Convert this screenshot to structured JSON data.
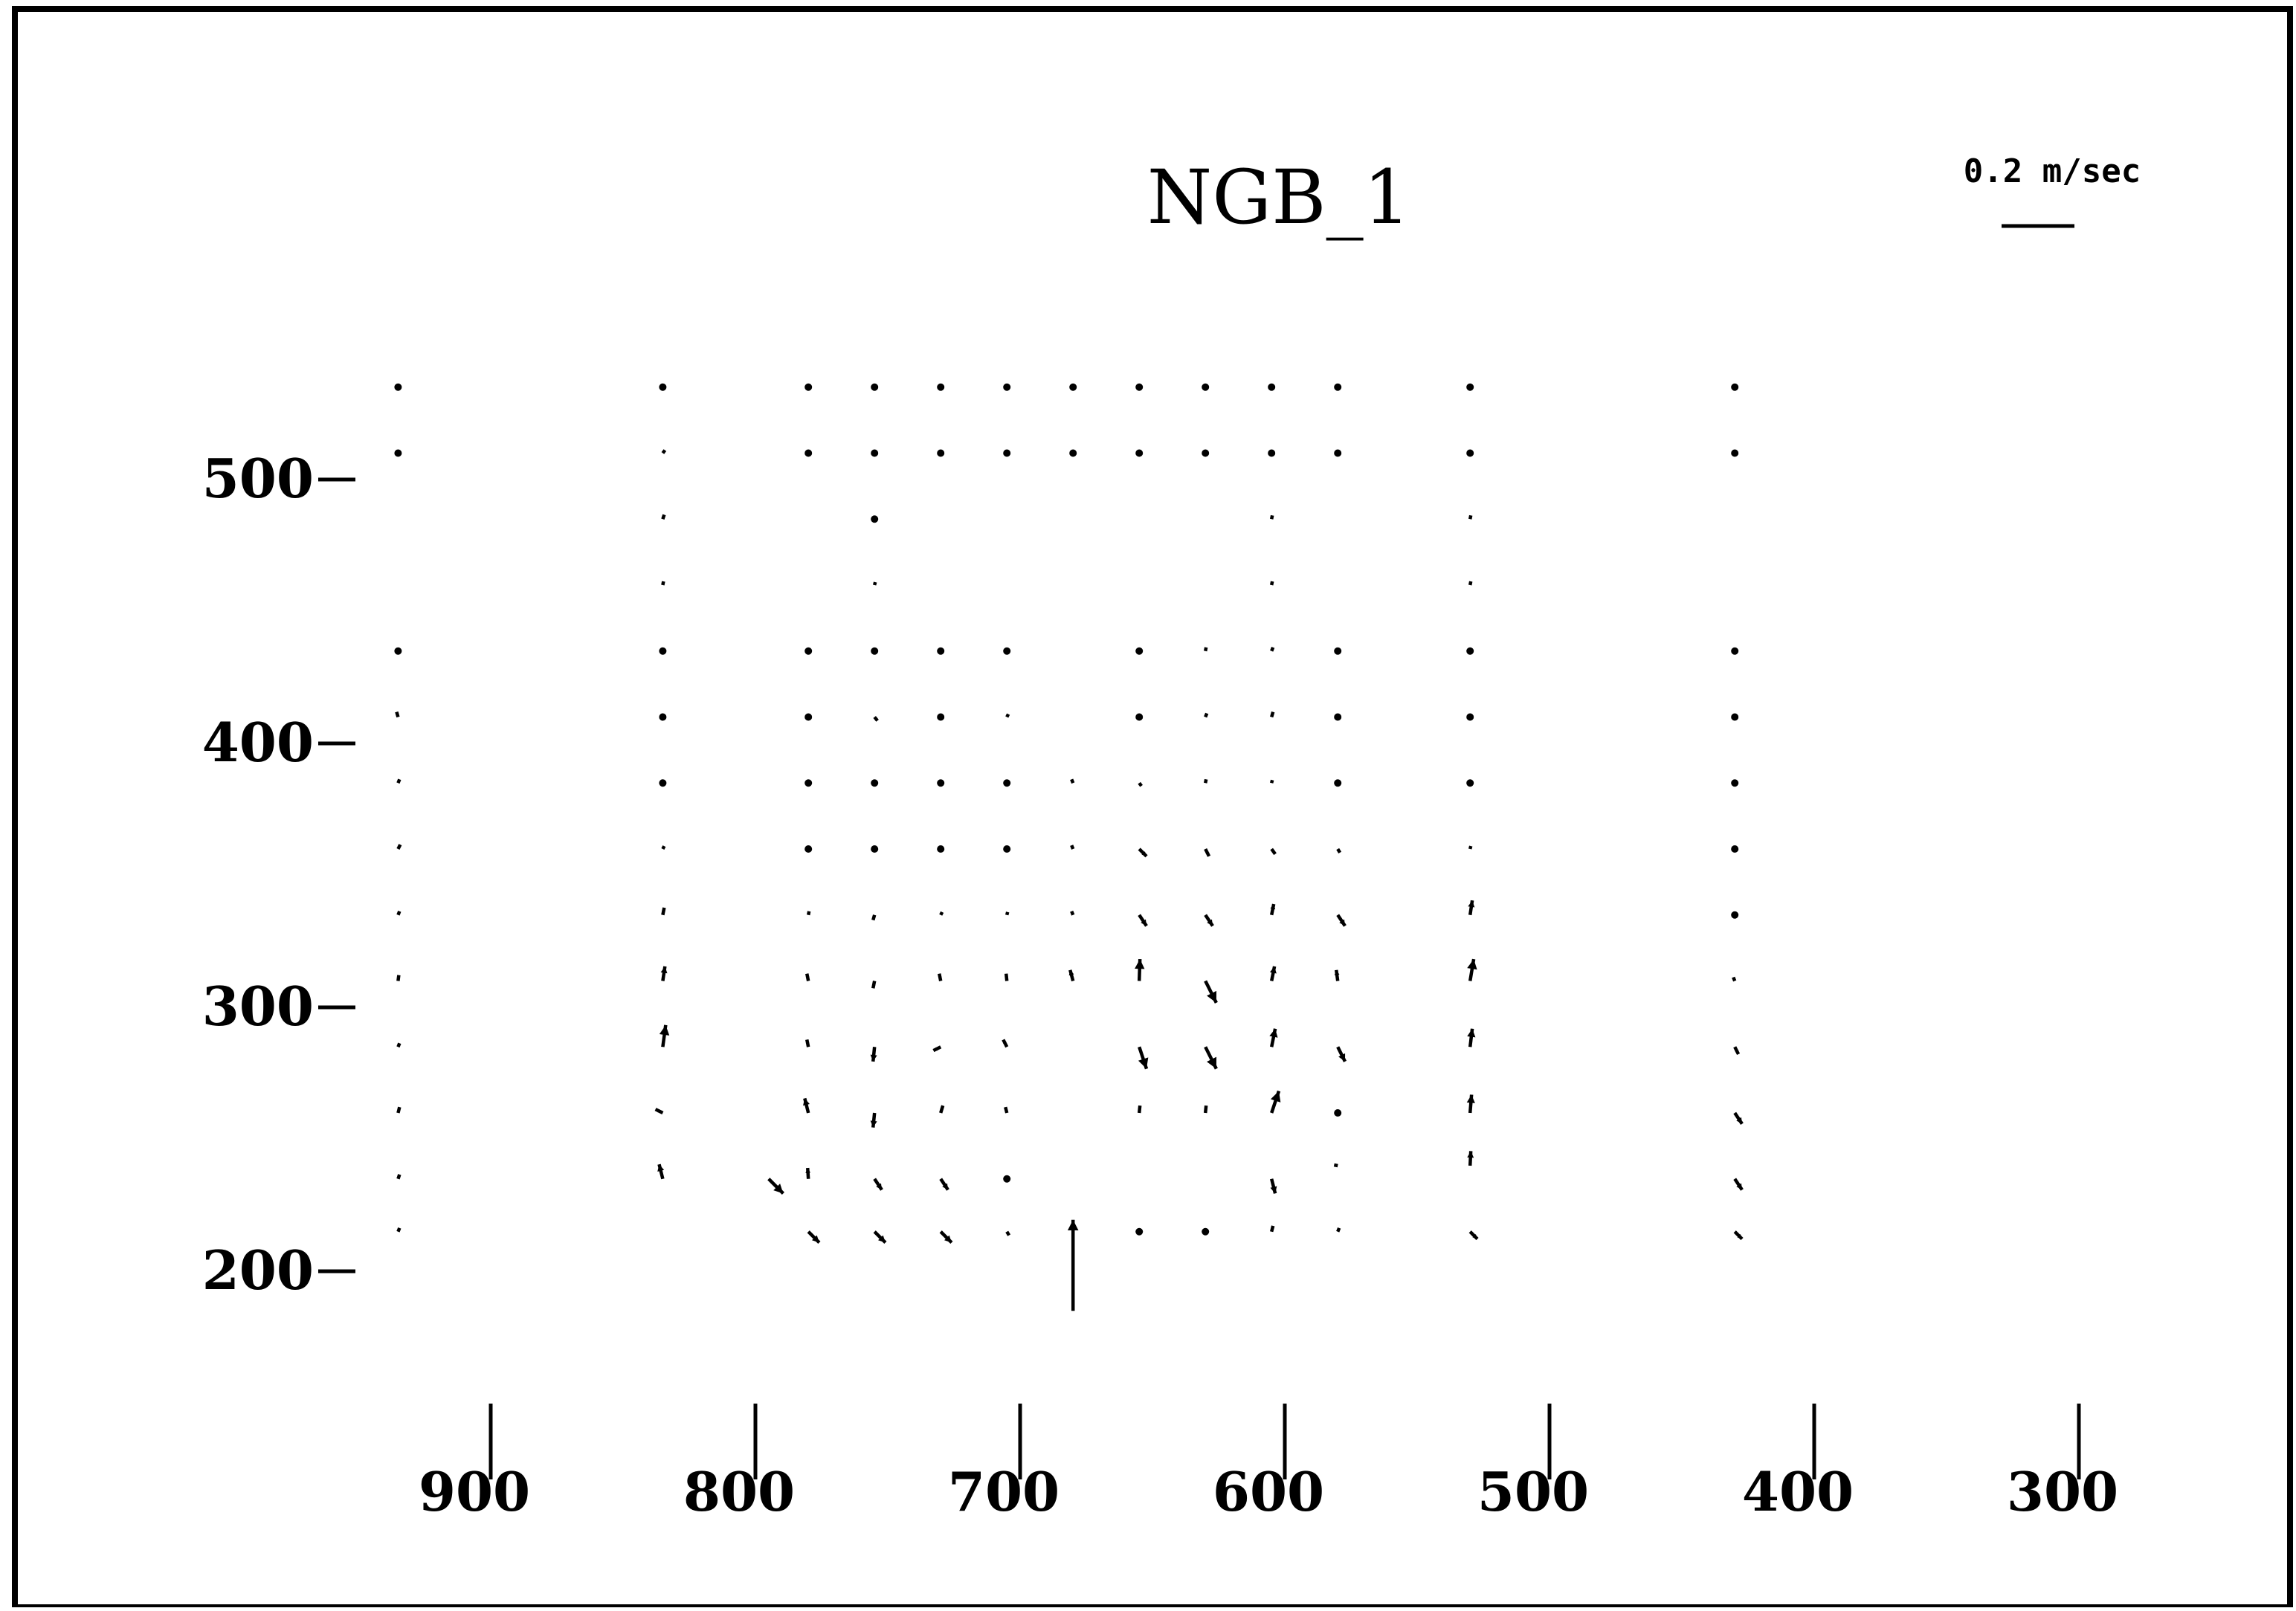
{
  "chart_data": {
    "type": "scatter",
    "title": "NGB_1",
    "xlabel": "",
    "ylabel": "",
    "x_ticks": [
      "900",
      "800",
      "700",
      "600",
      "500",
      "400",
      "300"
    ],
    "y_ticks": [
      "500",
      "400",
      "300",
      "200"
    ],
    "xlim": [
      935,
      285
    ],
    "ylim": [
      180,
      545
    ],
    "grid": false,
    "scale_label": "0.2 m/sec",
    "scale_value_mps": 0.2,
    "vector_units": "m/sec (vector components u, v)",
    "vectors": [
      {
        "x": 935,
        "y": 535,
        "u": 0.002,
        "v": -0.004
      },
      {
        "x": 935,
        "y": 510,
        "u": 0.004,
        "v": -0.004
      },
      {
        "x": 935,
        "y": 435,
        "u": 0.002,
        "v": 0.004
      },
      {
        "x": 935,
        "y": 410,
        "u": -0.004,
        "v": 0.014
      },
      {
        "x": 935,
        "y": 385,
        "u": 0.004,
        "v": 0.01
      },
      {
        "x": 935,
        "y": 360,
        "u": 0.006,
        "v": 0.012
      },
      {
        "x": 935,
        "y": 335,
        "u": 0.004,
        "v": 0.01
      },
      {
        "x": 935,
        "y": 310,
        "u": 0.002,
        "v": 0.016
      },
      {
        "x": 935,
        "y": 285,
        "u": 0.004,
        "v": 0.01
      },
      {
        "x": 935,
        "y": 260,
        "u": 0.004,
        "v": 0.016
      },
      {
        "x": 935,
        "y": 235,
        "u": 0.004,
        "v": 0.012
      },
      {
        "x": 935,
        "y": 215,
        "u": 0.004,
        "v": 0.01
      },
      {
        "x": 835,
        "y": 535,
        "u": 0.002,
        "v": -0.004
      },
      {
        "x": 835,
        "y": 510,
        "u": 0.006,
        "v": 0.008
      },
      {
        "x": 835,
        "y": 485,
        "u": 0.004,
        "v": 0.012
      },
      {
        "x": 835,
        "y": 460,
        "u": 0.002,
        "v": 0.01
      },
      {
        "x": 835,
        "y": 435,
        "u": 0.002,
        "v": 0.006
      },
      {
        "x": 835,
        "y": 410,
        "u": 0.002,
        "v": 0.004
      },
      {
        "x": 835,
        "y": 385,
        "u": 0.002,
        "v": 0.004
      },
      {
        "x": 835,
        "y": 360,
        "u": 0.004,
        "v": 0.008
      },
      {
        "x": 835,
        "y": 335,
        "u": 0.004,
        "v": 0.02
      },
      {
        "x": 835,
        "y": 310,
        "u": 0.006,
        "v": 0.04
      },
      {
        "x": 835,
        "y": 285,
        "u": 0.008,
        "v": 0.06
      },
      {
        "x": 835,
        "y": 260,
        "u": -0.02,
        "v": 0.01
      },
      {
        "x": 835,
        "y": 235,
        "u": -0.01,
        "v": 0.04
      },
      {
        "x": 795,
        "y": 235,
        "u": 0.04,
        "v": -0.04
      },
      {
        "x": 780,
        "y": 535,
        "u": 0.004,
        "v": -0.004
      },
      {
        "x": 780,
        "y": 510,
        "u": 0.004,
        "v": -0.004
      },
      {
        "x": 780,
        "y": 435,
        "u": 0.002,
        "v": 0.004
      },
      {
        "x": 780,
        "y": 410,
        "u": 0.002,
        "v": 0.004
      },
      {
        "x": 780,
        "y": 385,
        "u": 0.002,
        "v": 0.004
      },
      {
        "x": 780,
        "y": 360,
        "u": 0.002,
        "v": 0.004
      },
      {
        "x": 780,
        "y": 335,
        "u": 0.002,
        "v": 0.01
      },
      {
        "x": 780,
        "y": 310,
        "u": -0.004,
        "v": 0.02
      },
      {
        "x": 780,
        "y": 285,
        "u": -0.004,
        "v": 0.02
      },
      {
        "x": 780,
        "y": 260,
        "u": -0.01,
        "v": 0.04
      },
      {
        "x": 780,
        "y": 235,
        "u": -0.002,
        "v": 0.03
      },
      {
        "x": 780,
        "y": 215,
        "u": 0.03,
        "v": -0.03
      },
      {
        "x": 755,
        "y": 535,
        "u": 0.002,
        "v": -0.004
      },
      {
        "x": 755,
        "y": 510,
        "u": 0.002,
        "v": -0.004
      },
      {
        "x": 755,
        "y": 485,
        "u": 0.002,
        "v": 0.006
      },
      {
        "x": 755,
        "y": 460,
        "u": 0.002,
        "v": 0.008
      },
      {
        "x": 755,
        "y": 435,
        "u": 0.002,
        "v": 0.006
      },
      {
        "x": 755,
        "y": 410,
        "u": 0.008,
        "v": -0.01
      },
      {
        "x": 755,
        "y": 385,
        "u": 0.002,
        "v": -0.004
      },
      {
        "x": 755,
        "y": 360,
        "u": 0.002,
        "v": -0.004
      },
      {
        "x": 755,
        "y": 335,
        "u": -0.004,
        "v": -0.014
      },
      {
        "x": 755,
        "y": 310,
        "u": -0.004,
        "v": -0.02
      },
      {
        "x": 755,
        "y": 285,
        "u": -0.004,
        "v": -0.04
      },
      {
        "x": 755,
        "y": 260,
        "u": -0.004,
        "v": -0.04
      },
      {
        "x": 755,
        "y": 235,
        "u": 0.02,
        "v": -0.03
      },
      {
        "x": 755,
        "y": 215,
        "u": 0.03,
        "v": -0.03
      },
      {
        "x": 730,
        "y": 535,
        "u": 0.002,
        "v": -0.004
      },
      {
        "x": 730,
        "y": 510,
        "u": 0.002,
        "v": -0.004
      },
      {
        "x": 730,
        "y": 435,
        "u": 0.004,
        "v": 0.006
      },
      {
        "x": 730,
        "y": 410,
        "u": 0.002,
        "v": 0.004
      },
      {
        "x": 730,
        "y": 385,
        "u": 0.002,
        "v": 0.004
      },
      {
        "x": 730,
        "y": 360,
        "u": 0.002,
        "v": 0.006
      },
      {
        "x": 730,
        "y": 335,
        "u": 0.004,
        "v": 0.008
      },
      {
        "x": 730,
        "y": 310,
        "u": -0.004,
        "v": 0.02
      },
      {
        "x": 730,
        "y": 285,
        "u": -0.02,
        "v": -0.01
      },
      {
        "x": 730,
        "y": 260,
        "u": 0.006,
        "v": 0.02
      },
      {
        "x": 730,
        "y": 235,
        "u": 0.02,
        "v": -0.03
      },
      {
        "x": 730,
        "y": 215,
        "u": 0.03,
        "v": -0.03
      },
      {
        "x": 705,
        "y": 535,
        "u": 0.004,
        "v": 0.006
      },
      {
        "x": 705,
        "y": 510,
        "u": 0.002,
        "v": -0.004
      },
      {
        "x": 705,
        "y": 435,
        "u": 0.002,
        "v": 0.006
      },
      {
        "x": 705,
        "y": 410,
        "u": 0.004,
        "v": 0.008
      },
      {
        "x": 705,
        "y": 385,
        "u": 0.002,
        "v": 0.006
      },
      {
        "x": 705,
        "y": 360,
        "u": 0.004,
        "v": 0.006
      },
      {
        "x": 705,
        "y": 335,
        "u": 0.002,
        "v": 0.008
      },
      {
        "x": 705,
        "y": 310,
        "u": -0.002,
        "v": 0.02
      },
      {
        "x": 705,
        "y": 285,
        "u": -0.01,
        "v": 0.02
      },
      {
        "x": 705,
        "y": 260,
        "u": -0.004,
        "v": 0.016
      },
      {
        "x": 705,
        "y": 235,
        "u": 0.002,
        "v": 0.006
      },
      {
        "x": 705,
        "y": 215,
        "u": 0.006,
        "v": -0.01
      },
      {
        "x": 680,
        "y": 535,
        "u": 0.002,
        "v": 0.004
      },
      {
        "x": 680,
        "y": 510,
        "u": 0.004,
        "v": 0.004
      },
      {
        "x": 680,
        "y": 385,
        "u": -0.004,
        "v": 0.01
      },
      {
        "x": 680,
        "y": 360,
        "u": -0.004,
        "v": 0.01
      },
      {
        "x": 680,
        "y": 335,
        "u": -0.004,
        "v": 0.01
      },
      {
        "x": 680,
        "y": 310,
        "u": -0.008,
        "v": 0.03
      },
      {
        "x": 680,
        "y": 185,
        "u": 0.0,
        "v": 0.25
      },
      {
        "x": 655,
        "y": 535,
        "u": 0.002,
        "v": 0.004
      },
      {
        "x": 655,
        "y": 510,
        "u": 0.002,
        "v": 0.004
      },
      {
        "x": 655,
        "y": 435,
        "u": 0.002,
        "v": 0.006
      },
      {
        "x": 655,
        "y": 410,
        "u": 0.002,
        "v": 0.006
      },
      {
        "x": 655,
        "y": 385,
        "u": 0.006,
        "v": -0.008
      },
      {
        "x": 655,
        "y": 360,
        "u": 0.02,
        "v": -0.02
      },
      {
        "x": 655,
        "y": 335,
        "u": 0.02,
        "v": -0.03
      },
      {
        "x": 655,
        "y": 310,
        "u": 0.002,
        "v": 0.06
      },
      {
        "x": 655,
        "y": 285,
        "u": 0.02,
        "v": -0.06
      },
      {
        "x": 655,
        "y": 260,
        "u": 0.002,
        "v": 0.02
      },
      {
        "x": 655,
        "y": 215,
        "u": 0.002,
        "v": 0.004
      },
      {
        "x": 630,
        "y": 535,
        "u": 0.002,
        "v": 0.004
      },
      {
        "x": 630,
        "y": 510,
        "u": 0.002,
        "v": 0.004
      },
      {
        "x": 630,
        "y": 435,
        "u": 0.002,
        "v": 0.01
      },
      {
        "x": 630,
        "y": 410,
        "u": 0.004,
        "v": 0.01
      },
      {
        "x": 630,
        "y": 385,
        "u": 0.002,
        "v": 0.01
      },
      {
        "x": 630,
        "y": 360,
        "u": 0.01,
        "v": -0.02
      },
      {
        "x": 630,
        "y": 335,
        "u": 0.02,
        "v": -0.03
      },
      {
        "x": 630,
        "y": 310,
        "u": 0.03,
        "v": -0.06
      },
      {
        "x": 630,
        "y": 285,
        "u": 0.03,
        "v": -0.06
      },
      {
        "x": 630,
        "y": 260,
        "u": 0.002,
        "v": 0.02
      },
      {
        "x": 630,
        "y": 215,
        "u": 0.004,
        "v": 0.006
      },
      {
        "x": 605,
        "y": 535,
        "u": 0.002,
        "v": 0.004
      },
      {
        "x": 605,
        "y": 510,
        "u": 0.002,
        "v": 0.004
      },
      {
        "x": 605,
        "y": 485,
        "u": 0.002,
        "v": 0.01
      },
      {
        "x": 605,
        "y": 460,
        "u": 0.002,
        "v": 0.01
      },
      {
        "x": 605,
        "y": 435,
        "u": 0.004,
        "v": 0.01
      },
      {
        "x": 605,
        "y": 410,
        "u": 0.004,
        "v": 0.014
      },
      {
        "x": 605,
        "y": 385,
        "u": 0.002,
        "v": 0.008
      },
      {
        "x": 605,
        "y": 360,
        "u": 0.01,
        "v": -0.014
      },
      {
        "x": 605,
        "y": 335,
        "u": 0.006,
        "v": 0.03
      },
      {
        "x": 605,
        "y": 310,
        "u": 0.008,
        "v": 0.04
      },
      {
        "x": 605,
        "y": 285,
        "u": 0.01,
        "v": 0.05
      },
      {
        "x": 605,
        "y": 260,
        "u": 0.02,
        "v": 0.06
      },
      {
        "x": 605,
        "y": 235,
        "u": 0.01,
        "v": -0.04
      },
      {
        "x": 605,
        "y": 215,
        "u": 0.004,
        "v": 0.016
      },
      {
        "x": 580,
        "y": 535,
        "u": 0.002,
        "v": 0.004
      },
      {
        "x": 580,
        "y": 510,
        "u": 0.002,
        "v": 0.004
      },
      {
        "x": 580,
        "y": 435,
        "u": 0.004,
        "v": 0.006
      },
      {
        "x": 580,
        "y": 410,
        "u": 0.002,
        "v": 0.004
      },
      {
        "x": 580,
        "y": 385,
        "u": 0.002,
        "v": 0.006
      },
      {
        "x": 580,
        "y": 360,
        "u": 0.006,
        "v": -0.01
      },
      {
        "x": 580,
        "y": 335,
        "u": 0.02,
        "v": -0.03
      },
      {
        "x": 580,
        "y": 310,
        "u": -0.004,
        "v": 0.03
      },
      {
        "x": 580,
        "y": 285,
        "u": 0.02,
        "v": -0.04
      },
      {
        "x": 580,
        "y": 260,
        "u": 0.002,
        "v": 0.006
      },
      {
        "x": 580,
        "y": 240,
        "u": -0.01,
        "v": 0.002
      },
      {
        "x": 580,
        "y": 215,
        "u": 0.004,
        "v": 0.01
      },
      {
        "x": 530,
        "y": 535,
        "u": 0.002,
        "v": 0.004
      },
      {
        "x": 530,
        "y": 510,
        "u": 0.002,
        "v": 0.004
      },
      {
        "x": 530,
        "y": 485,
        "u": 0.002,
        "v": 0.01
      },
      {
        "x": 530,
        "y": 460,
        "u": 0.002,
        "v": 0.01
      },
      {
        "x": 530,
        "y": 435,
        "u": 0.002,
        "v": 0.004
      },
      {
        "x": 530,
        "y": 410,
        "u": 0.002,
        "v": 0.006
      },
      {
        "x": 530,
        "y": 385,
        "u": 0.002,
        "v": 0.006
      },
      {
        "x": 530,
        "y": 360,
        "u": 0.002,
        "v": 0.008
      },
      {
        "x": 530,
        "y": 335,
        "u": 0.006,
        "v": 0.04
      },
      {
        "x": 530,
        "y": 310,
        "u": 0.01,
        "v": 0.06
      },
      {
        "x": 530,
        "y": 285,
        "u": 0.006,
        "v": 0.05
      },
      {
        "x": 530,
        "y": 260,
        "u": 0.004,
        "v": 0.05
      },
      {
        "x": 530,
        "y": 240,
        "u": 0.002,
        "v": 0.04
      },
      {
        "x": 530,
        "y": 215,
        "u": 0.02,
        "v": -0.02
      },
      {
        "x": 430,
        "y": 535,
        "u": 0.002,
        "v": 0.004
      },
      {
        "x": 430,
        "y": 510,
        "u": 0.002,
        "v": 0.004
      },
      {
        "x": 430,
        "y": 435,
        "u": 0.002,
        "v": 0.004
      },
      {
        "x": 430,
        "y": 410,
        "u": 0.002,
        "v": 0.004
      },
      {
        "x": 430,
        "y": 385,
        "u": 0.002,
        "v": 0.006
      },
      {
        "x": 430,
        "y": 360,
        "u": 0.002,
        "v": 0.006
      },
      {
        "x": 430,
        "y": 335,
        "u": 0.002,
        "v": 0.006
      },
      {
        "x": 430,
        "y": 310,
        "u": -0.004,
        "v": 0.01
      },
      {
        "x": 430,
        "y": 285,
        "u": 0.01,
        "v": -0.02
      },
      {
        "x": 430,
        "y": 260,
        "u": 0.02,
        "v": -0.03
      },
      {
        "x": 430,
        "y": 235,
        "u": 0.02,
        "v": -0.03
      },
      {
        "x": 430,
        "y": 215,
        "u": 0.02,
        "v": -0.02
      }
    ]
  }
}
